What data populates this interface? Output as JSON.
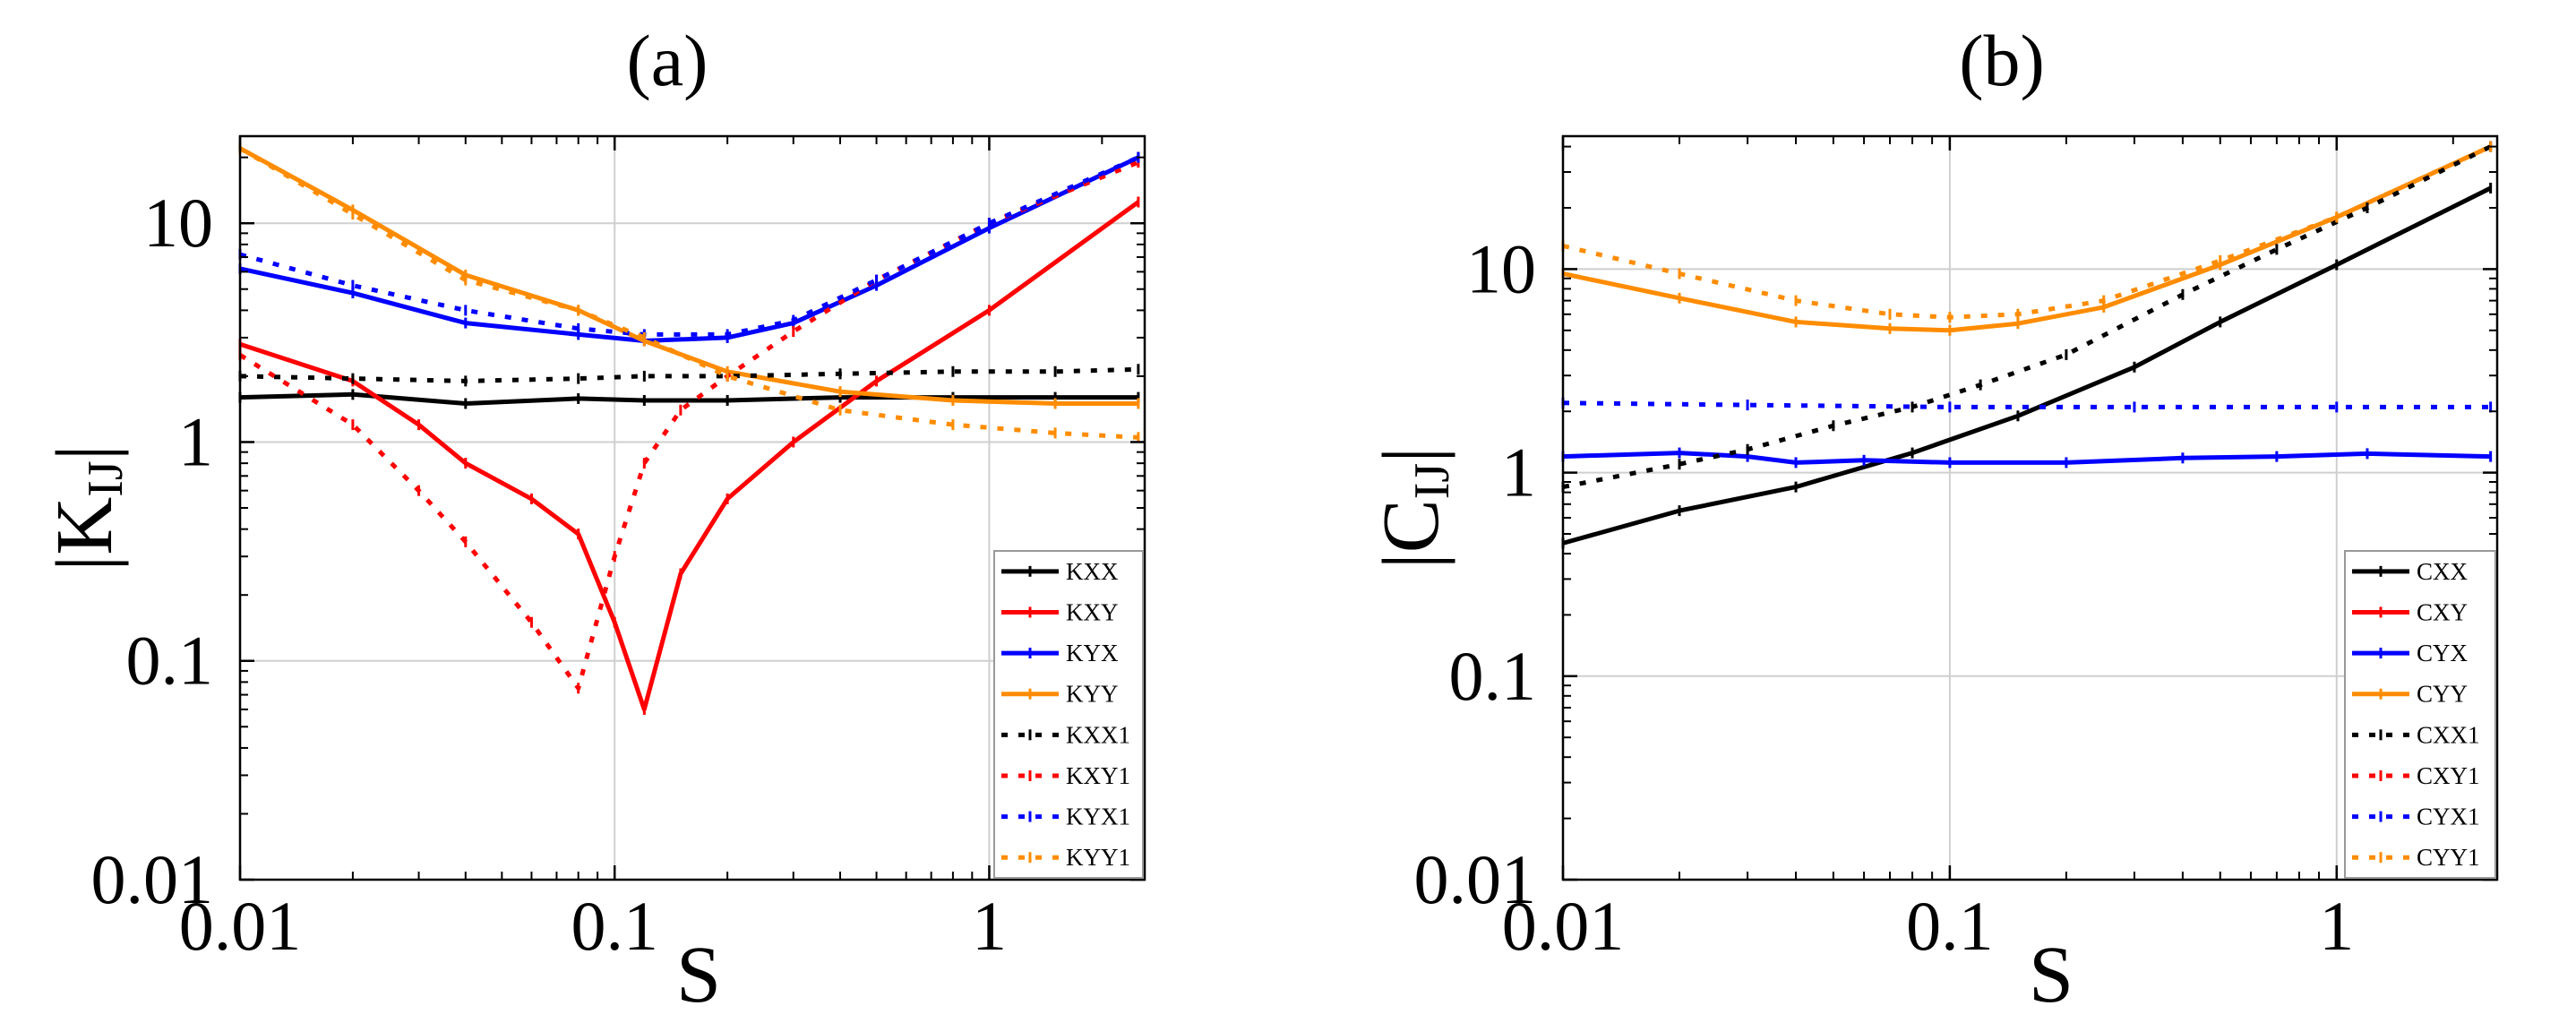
{
  "chart_data": [
    {
      "type": "line",
      "panel_label": "(a)",
      "xlabel": "S",
      "ylabel_main": "|K",
      "ylabel_sub": "IJ",
      "ylabel_close": "|",
      "xscale": "log",
      "yscale": "log",
      "xlim": [
        0.01,
        2.6
      ],
      "ylim": [
        0.01,
        25
      ],
      "xticks": [
        {
          "value": 0.01,
          "label": "0.01"
        },
        {
          "value": 0.1,
          "label": "0.1"
        },
        {
          "value": 1,
          "label": "1"
        }
      ],
      "yticks": [
        {
          "value": 0.01,
          "label": "0.01"
        },
        {
          "value": 0.1,
          "label": "0.1"
        },
        {
          "value": 1,
          "label": "1"
        },
        {
          "value": 10,
          "label": "10"
        }
      ],
      "grid": true,
      "legend_position": "bottom-right",
      "series": [
        {
          "name": "KXX",
          "color": "#000000",
          "style": "solid",
          "x": [
            0.01,
            0.02,
            0.04,
            0.08,
            0.12,
            0.2,
            0.4,
            0.8,
            1.5,
            2.5
          ],
          "y": [
            1.6,
            1.65,
            1.5,
            1.58,
            1.55,
            1.55,
            1.6,
            1.6,
            1.6,
            1.6
          ]
        },
        {
          "name": "KXY",
          "color": "#ff0000",
          "style": "solid",
          "x": [
            0.01,
            0.02,
            0.03,
            0.04,
            0.06,
            0.08,
            0.1,
            0.12,
            0.15,
            0.2,
            0.3,
            0.5,
            1,
            2.5
          ],
          "y": [
            2.8,
            1.9,
            1.2,
            0.8,
            0.55,
            0.38,
            0.15,
            0.06,
            0.25,
            0.55,
            1.0,
            1.9,
            4.0,
            12.5
          ]
        },
        {
          "name": "KYX",
          "color": "#0000ff",
          "style": "solid",
          "x": [
            0.01,
            0.02,
            0.04,
            0.08,
            0.12,
            0.2,
            0.3,
            0.5,
            1,
            2.5
          ],
          "y": [
            6.2,
            4.8,
            3.5,
            3.1,
            2.9,
            3.0,
            3.5,
            5.2,
            9.5,
            20
          ]
        },
        {
          "name": "KYY",
          "color": "#ff8c00",
          "style": "solid",
          "x": [
            0.01,
            0.02,
            0.04,
            0.08,
            0.12,
            0.2,
            0.4,
            0.8,
            1.5,
            2.5
          ],
          "y": [
            22,
            11.5,
            5.8,
            4.0,
            2.9,
            2.1,
            1.7,
            1.55,
            1.5,
            1.5
          ]
        },
        {
          "name": "KXX1",
          "color": "#000000",
          "style": "dotted",
          "x": [
            0.01,
            0.02,
            0.04,
            0.08,
            0.12,
            0.2,
            0.4,
            0.8,
            1.5,
            2.5
          ],
          "y": [
            2.0,
            1.95,
            1.9,
            1.95,
            2.0,
            2.0,
            2.05,
            2.1,
            2.1,
            2.15
          ]
        },
        {
          "name": "KXY1",
          "color": "#ff0000",
          "style": "dotted",
          "x": [
            0.01,
            0.02,
            0.03,
            0.04,
            0.06,
            0.08,
            0.1,
            0.12,
            0.15,
            0.2,
            0.3,
            0.5,
            1,
            2.5
          ],
          "y": [
            2.5,
            1.2,
            0.6,
            0.35,
            0.15,
            0.075,
            0.3,
            0.8,
            1.4,
            2.0,
            3.2,
            5.5,
            10,
            19
          ]
        },
        {
          "name": "KYX1",
          "color": "#0000ff",
          "style": "dotted",
          "x": [
            0.01,
            0.02,
            0.04,
            0.08,
            0.12,
            0.2,
            0.3,
            0.5,
            1,
            2.5
          ],
          "y": [
            7.2,
            5.2,
            4.0,
            3.3,
            3.1,
            3.1,
            3.6,
            5.5,
            10,
            20
          ]
        },
        {
          "name": "KYY1",
          "color": "#ff8c00",
          "style": "dotted",
          "x": [
            0.01,
            0.02,
            0.04,
            0.08,
            0.12,
            0.2,
            0.4,
            0.8,
            1.5,
            2.5
          ],
          "y": [
            22,
            11,
            5.5,
            4.0,
            3.0,
            2.0,
            1.4,
            1.2,
            1.1,
            1.05
          ]
        }
      ]
    },
    {
      "type": "line",
      "panel_label": "(b)",
      "xlabel": "S",
      "ylabel_main": "|C",
      "ylabel_sub": "IJ",
      "ylabel_close": "|",
      "xscale": "log",
      "yscale": "log",
      "xlim": [
        0.01,
        2.6
      ],
      "ylim": [
        0.01,
        45
      ],
      "xticks": [
        {
          "value": 0.01,
          "label": "0.01"
        },
        {
          "value": 0.1,
          "label": "0.1"
        },
        {
          "value": 1,
          "label": "1"
        }
      ],
      "yticks": [
        {
          "value": 0.01,
          "label": "0.01"
        },
        {
          "value": 0.1,
          "label": "0.1"
        },
        {
          "value": 1,
          "label": "1"
        },
        {
          "value": 10,
          "label": "10"
        }
      ],
      "grid": true,
      "legend_position": "bottom-right",
      "series": [
        {
          "name": "CXX",
          "color": "#000000",
          "style": "solid",
          "x": [
            0.01,
            0.02,
            0.04,
            0.08,
            0.15,
            0.3,
            0.5,
            1,
            2.5
          ],
          "y": [
            0.45,
            0.65,
            0.85,
            1.25,
            1.9,
            3.3,
            5.5,
            10.5,
            25
          ]
        },
        {
          "name": "CXY",
          "color": "#ff0000",
          "style": "solid",
          "x": [],
          "y": []
        },
        {
          "name": "CYX",
          "color": "#0000ff",
          "style": "solid",
          "x": [
            0.01,
            0.02,
            0.03,
            0.04,
            0.06,
            0.1,
            0.2,
            0.4,
            0.7,
            1.2,
            2.5
          ],
          "y": [
            1.2,
            1.25,
            1.2,
            1.12,
            1.15,
            1.12,
            1.12,
            1.18,
            1.2,
            1.24,
            1.2
          ]
        },
        {
          "name": "CYY",
          "color": "#ff8c00",
          "style": "solid",
          "x": [
            0.01,
            0.02,
            0.04,
            0.07,
            0.1,
            0.15,
            0.25,
            0.5,
            1,
            2.5
          ],
          "y": [
            9.5,
            7.2,
            5.5,
            5.1,
            5.0,
            5.4,
            6.5,
            10.5,
            18,
            40
          ]
        },
        {
          "name": "CXX1",
          "color": "#000000",
          "style": "dotted",
          "x": [
            0.01,
            0.02,
            0.03,
            0.05,
            0.08,
            0.12,
            0.2,
            0.4,
            0.7,
            1.2,
            2.5
          ],
          "y": [
            0.85,
            1.1,
            1.3,
            1.7,
            2.1,
            2.7,
            3.8,
            7.5,
            12.5,
            20,
            40
          ]
        },
        {
          "name": "CXY1",
          "color": "#ff0000",
          "style": "dotted",
          "x": [],
          "y": []
        },
        {
          "name": "CYX1",
          "color": "#0000ff",
          "style": "dotted",
          "x": [
            0.01,
            0.03,
            0.1,
            0.3,
            1,
            2.5
          ],
          "y": [
            2.2,
            2.15,
            2.1,
            2.1,
            2.1,
            2.1
          ]
        },
        {
          "name": "CYY1",
          "color": "#ff8c00",
          "style": "dotted",
          "x": [
            0.01,
            0.02,
            0.04,
            0.07,
            0.1,
            0.15,
            0.25,
            0.5,
            1,
            2.5
          ],
          "y": [
            13,
            9.5,
            7.0,
            6.0,
            5.8,
            6.0,
            7.0,
            11,
            18,
            40
          ]
        }
      ]
    }
  ]
}
